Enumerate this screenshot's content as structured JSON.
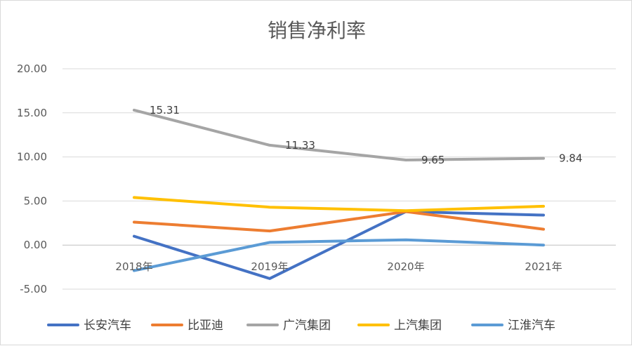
{
  "chart_data": {
    "type": "line",
    "title": "销售净利率",
    "xlabel": "",
    "ylabel": "",
    "categories": [
      "2018年",
      "2019年",
      "2020年",
      "2021年"
    ],
    "ylim": [
      -5,
      20
    ],
    "yticks": [
      "20.00",
      "15.00",
      "10.00",
      "5.00",
      "0.00",
      "-5.00"
    ],
    "grid": true,
    "legend_position": "bottom",
    "series": [
      {
        "name": "长安汽车",
        "color": "#4472C4",
        "values": [
          1.0,
          -3.8,
          3.8,
          3.4
        ]
      },
      {
        "name": "比亚迪",
        "color": "#ED7D31",
        "values": [
          2.6,
          1.6,
          3.8,
          1.8
        ]
      },
      {
        "name": "广汽集团",
        "color": "#A5A5A5",
        "values": [
          15.31,
          11.33,
          9.65,
          9.84
        ],
        "data_labels": [
          "15.31",
          "11.33",
          "9.65",
          "9.84"
        ]
      },
      {
        "name": "上汽集团",
        "color": "#FFC000",
        "values": [
          5.4,
          4.3,
          3.9,
          4.4
        ]
      },
      {
        "name": "江淮汽车",
        "color": "#5B9BD5",
        "values": [
          -2.9,
          0.3,
          0.6,
          0.0
        ]
      }
    ]
  }
}
